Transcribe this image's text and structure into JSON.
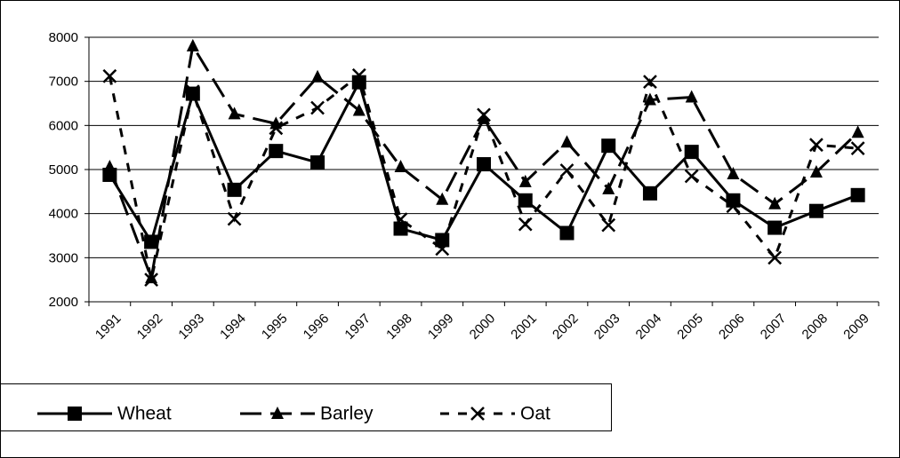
{
  "chart_data": {
    "type": "line",
    "categories": [
      "1991",
      "1992",
      "1993",
      "1994",
      "1995",
      "1996",
      "1997",
      "1998",
      "1999",
      "2000",
      "2001",
      "2002",
      "2003",
      "2004",
      "2005",
      "2006",
      "2007",
      "2008",
      "2009"
    ],
    "series": [
      {
        "name": "Wheat",
        "color": "#000000",
        "values": [
          4880,
          3360,
          6720,
          4540,
          5420,
          5160,
          6980,
          3660,
          3400,
          5120,
          4300,
          3560,
          5540,
          4460,
          5400,
          4300,
          3680,
          4060,
          4420
        ]
      },
      {
        "name": "Barley",
        "color": "#000000",
        "values": [
          5060,
          2540,
          7800,
          6260,
          6040,
          7100,
          6340,
          5060,
          4320,
          6150,
          4720,
          5620,
          4560,
          6580,
          6640,
          4900,
          4220,
          4940,
          5840
        ]
      },
      {
        "name": "Oat",
        "color": "#000000",
        "values": [
          7120,
          2500,
          6770,
          3880,
          5940,
          6400,
          7140,
          3870,
          3200,
          6240,
          3760,
          4980,
          3740,
          6990,
          4850,
          4170,
          3000,
          5560,
          5480
        ]
      }
    ],
    "ylim": [
      2000,
      8000
    ],
    "yticks": [
      2000,
      3000,
      4000,
      5000,
      6000,
      7000,
      8000
    ],
    "grid": true,
    "legend": "bottom"
  }
}
